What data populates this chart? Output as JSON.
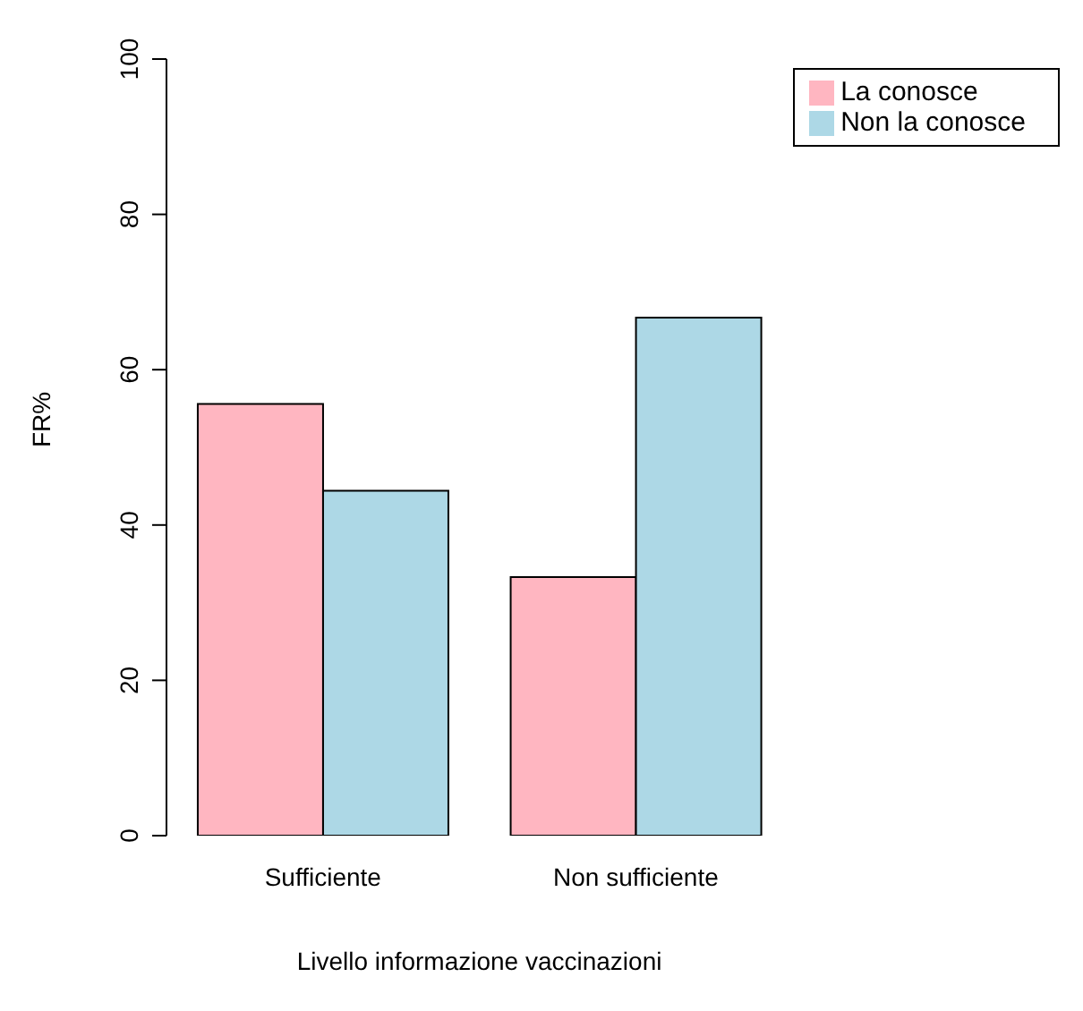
{
  "chart_data": {
    "type": "bar",
    "xlabel": "Livello informazione vaccinazioni",
    "ylabel": "FR%",
    "categories": [
      "Sufficiente",
      "Non sufficiente"
    ],
    "series": [
      {
        "name": "La conosce",
        "color": "#ffb6c1",
        "values": [
          55.6,
          33.3
        ]
      },
      {
        "name": "Non la conosce",
        "color": "#add8e6",
        "values": [
          44.4,
          66.7
        ]
      }
    ],
    "ylim": [
      0,
      100
    ],
    "yticks": [
      0,
      20,
      40,
      60,
      80,
      100
    ],
    "grid": false,
    "legend": "top right"
  }
}
